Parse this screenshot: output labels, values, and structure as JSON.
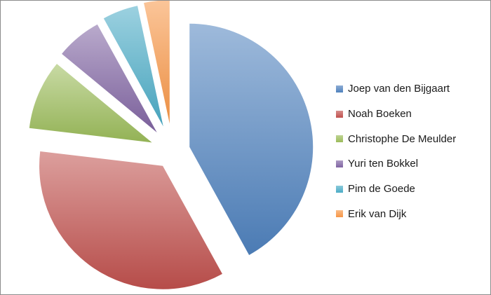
{
  "chart_data": {
    "type": "pie",
    "exploded": true,
    "legend_position": "right",
    "series": [
      {
        "labels": [
          "Joep van den Bijgaart",
          "Noah Boeken",
          "Christophe De Meulder",
          "Yuri ten Bokkel",
          "Pim de Goede",
          "Erik van Dijk"
        ],
        "values": [
          41.4,
          34.4,
          9.0,
          5.9,
          4.6,
          3.3
        ],
        "colors": [
          "#4f81bd",
          "#c0504d",
          "#9bbb59",
          "#8064a2",
          "#4bacc6",
          "#f79646"
        ]
      }
    ]
  }
}
